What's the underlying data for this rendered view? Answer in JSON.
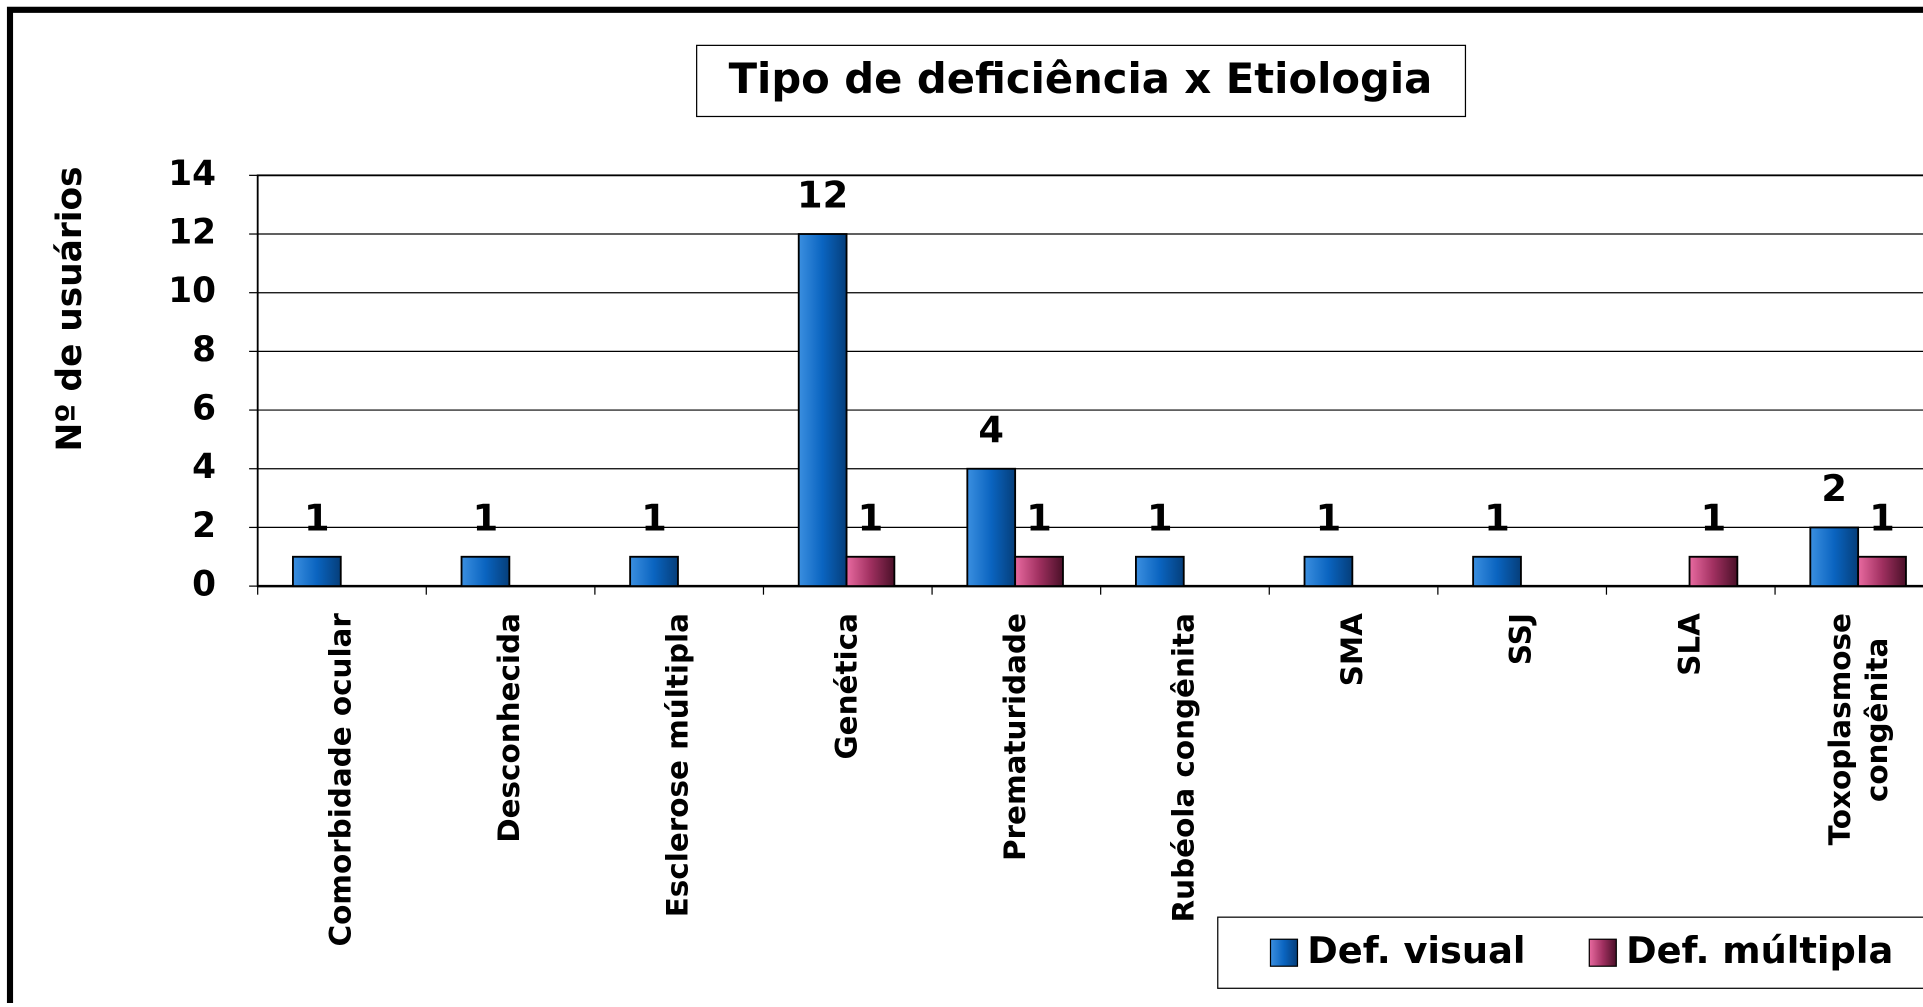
{
  "chart_data": {
    "type": "bar",
    "title": "Tipo de deficiência x Etiologia",
    "y_label": "Nº de usuários",
    "categories": [
      "Comorbidade ocular",
      "Desconhecida",
      "Esclerose múltipla",
      "Genética",
      "Prematuridade",
      "Rubéola congênita",
      "SMA",
      "SSJ",
      "SLA",
      "Toxoplasmose congênita"
    ],
    "series": [
      {
        "name": "Def. visual",
        "color": "#0a64c0",
        "values": [
          1,
          1,
          1,
          12,
          4,
          1,
          1,
          1,
          null,
          2
        ]
      },
      {
        "name": "Def. múltipla",
        "color": "#c8407a",
        "values": [
          null,
          null,
          null,
          1,
          1,
          null,
          null,
          null,
          1,
          1
        ]
      }
    ],
    "ylim": [
      0,
      14
    ],
    "yticks": [
      0,
      2,
      4,
      6,
      8,
      10,
      12,
      14
    ],
    "grid": true,
    "legend": "bottom-right"
  }
}
